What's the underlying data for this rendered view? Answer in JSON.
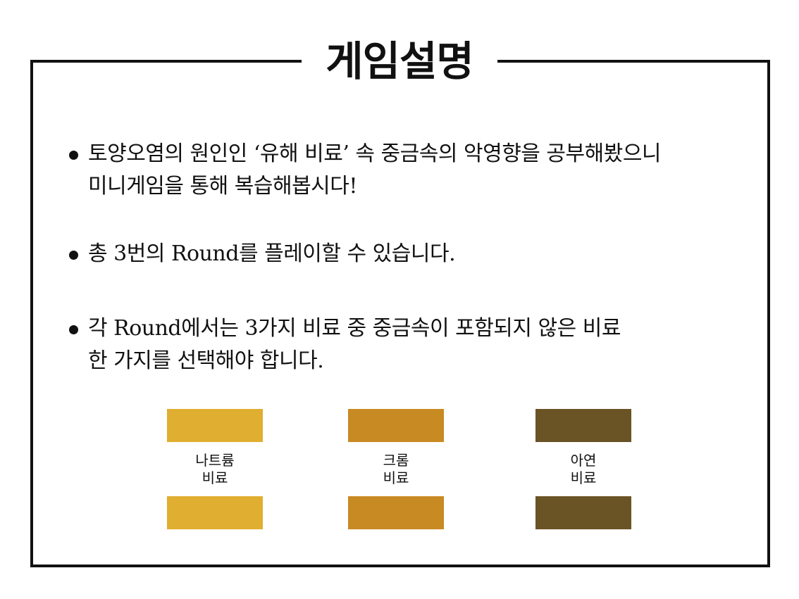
{
  "title": "게임설명",
  "bullets": [
    {
      "lines": [
        "토양오염의 원인인 ‘유해 비료’ 속 중금속의 악영향을 공부해봤으니",
        "미니게임을 통해 복습해봅시다!"
      ]
    },
    {
      "lines": [
        "총 3번의 Round를 플레이할 수 있습니다."
      ]
    },
    {
      "lines": [
        "각 Round에서는 3가지 비료 중 중금속이 포함되지 않은 비료",
        "한 가지를 선택해야 합니다."
      ]
    }
  ],
  "fertilizers": [
    {
      "name": "나트륨",
      "type": "비료",
      "color": "#E0AE30"
    },
    {
      "name": "크롬",
      "type": "비료",
      "color": "#C88A22"
    },
    {
      "name": "아연",
      "type": "비료",
      "color": "#6A5325"
    }
  ]
}
